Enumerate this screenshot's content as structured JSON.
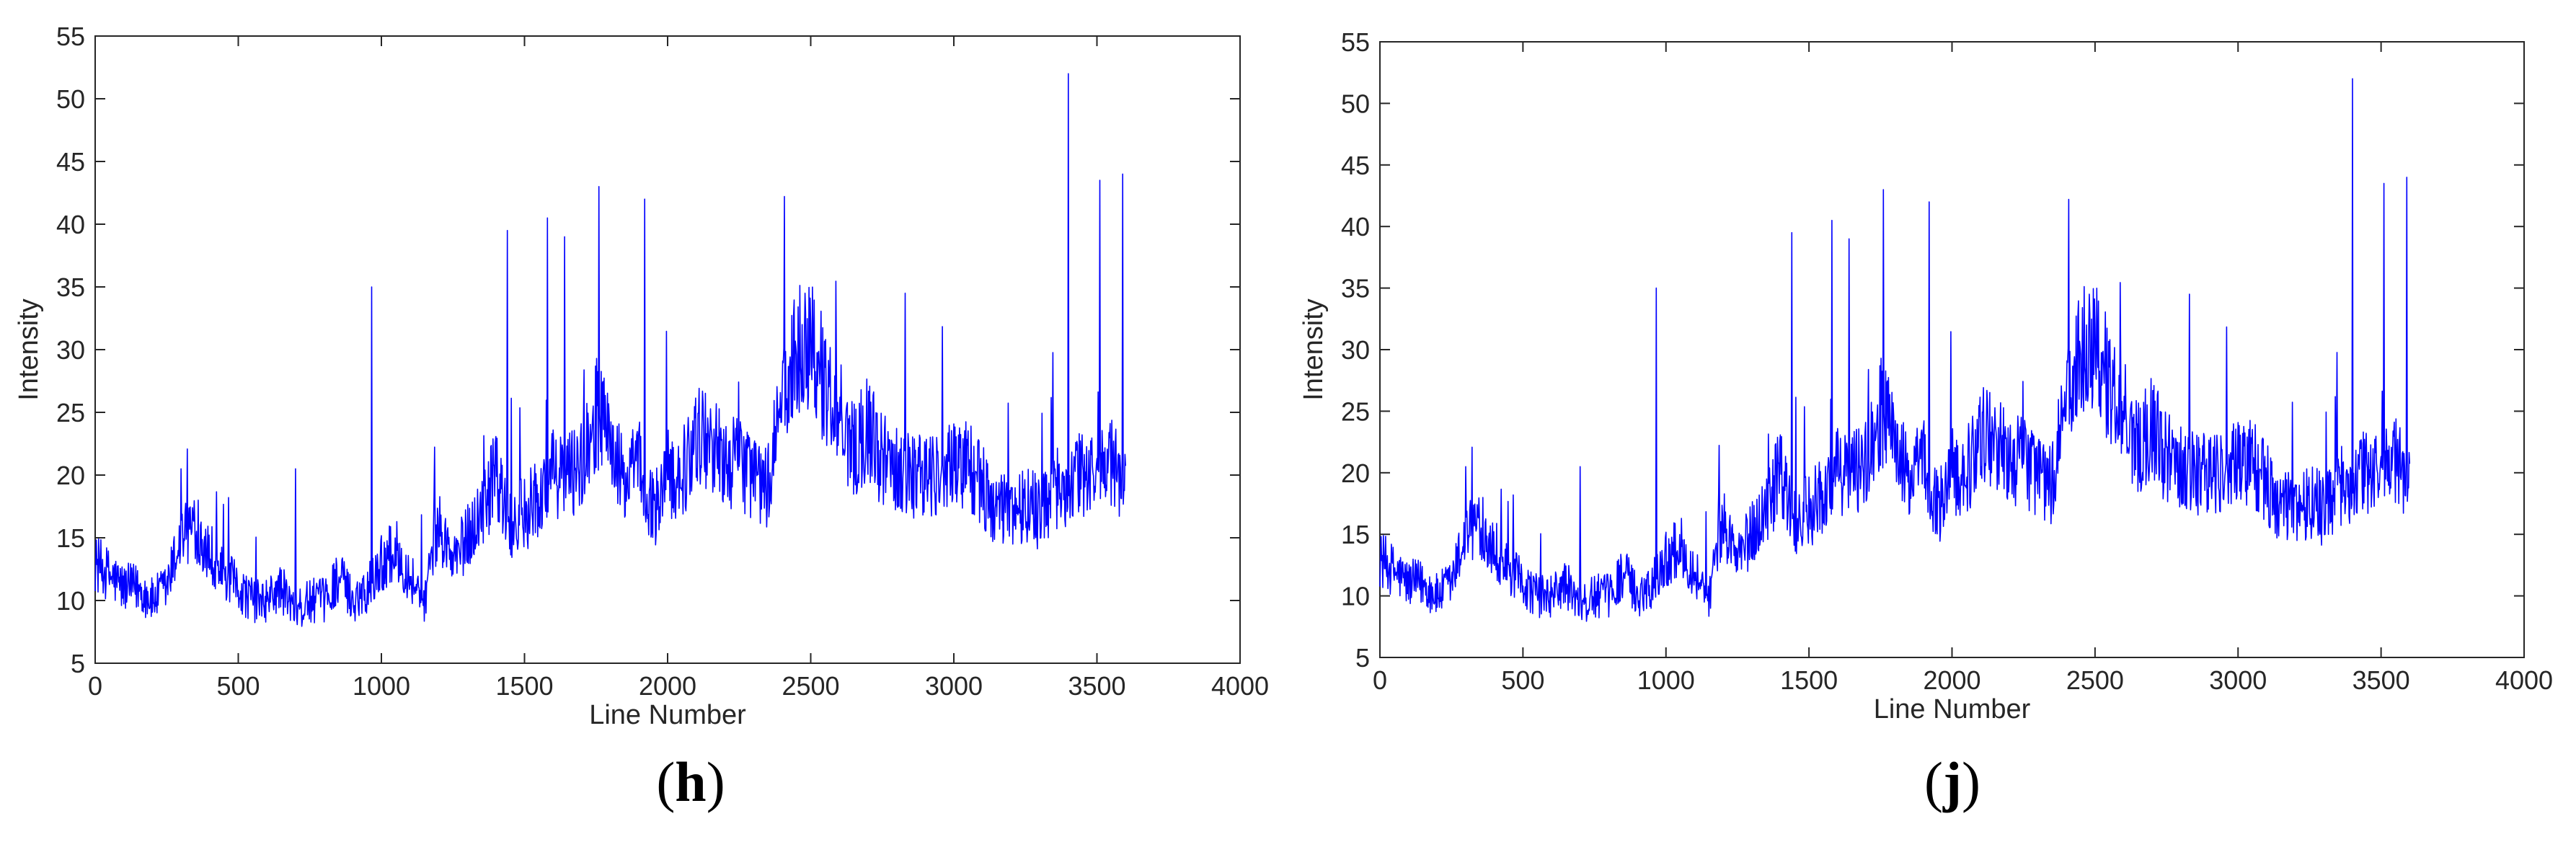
{
  "figure": {
    "accent_color": "#0000ff",
    "panels": [
      {
        "caption_open": "(",
        "caption_letter": "h",
        "caption_close": ")"
      },
      {
        "caption_open": "(",
        "caption_letter": "j",
        "caption_close": ")"
      }
    ]
  },
  "chart_data": [
    {
      "type": "line",
      "title": "",
      "xlabel": "Line Number",
      "ylabel": "Intensity",
      "xlim": [
        0,
        4000
      ],
      "ylim": [
        5,
        55
      ],
      "xticks": [
        0,
        500,
        1000,
        1500,
        2000,
        2500,
        3000,
        3500,
        4000
      ],
      "yticks": [
        5,
        10,
        15,
        20,
        25,
        30,
        35,
        40,
        45,
        50,
        55
      ],
      "grid": false,
      "legend": "none",
      "series": [
        {
          "color": "#0000ff",
          "x_start": 0,
          "x_step": 50,
          "y": [
            13,
            12,
            11,
            11,
            10,
            11,
            15,
            16,
            14,
            12,
            11,
            10,
            10,
            11,
            9,
            10,
            10,
            12,
            10,
            11,
            13,
            14,
            12,
            10,
            16,
            13,
            15,
            17,
            20,
            16,
            17,
            18,
            20,
            20,
            21,
            25,
            23,
            19,
            21,
            17,
            20,
            20,
            23,
            23,
            21,
            21,
            20,
            19,
            26,
            30,
            31,
            27,
            25,
            22,
            24,
            21,
            21,
            20,
            20,
            20,
            21,
            21,
            19,
            17,
            17,
            18,
            17,
            19,
            19,
            20,
            20,
            21,
            19,
            18
          ]
        },
        {
          "type_note": "spikes",
          "x": [
            300,
            360,
            700,
            965,
            1440,
            1580,
            1640,
            1760,
            1920,
            2470,
            2830,
            3400,
            3510,
            3590
          ],
          "y": [
            20.5,
            18,
            20.5,
            35,
            39.5,
            40.5,
            39,
            43,
            42,
            32,
            34.5,
            52,
            43.5,
            44
          ]
        }
      ]
    },
    {
      "type": "line",
      "title": "",
      "xlabel": "Line Number",
      "ylabel": "Intensity",
      "xlim": [
        0,
        4000
      ],
      "ylim": [
        5,
        55
      ],
      "xticks": [
        0,
        500,
        1000,
        1500,
        2000,
        2500,
        3000,
        3500,
        4000
      ],
      "yticks": [
        5,
        10,
        15,
        20,
        25,
        30,
        35,
        40,
        45,
        50,
        55
      ],
      "grid": false,
      "legend": "none",
      "series": [
        {
          "color": "#0000ff",
          "x_start": 0,
          "x_step": 50,
          "y": [
            13,
            12,
            11,
            11,
            10,
            11,
            15,
            16,
            14,
            12,
            11,
            10,
            10,
            11,
            9,
            10,
            10,
            12,
            10,
            11,
            13,
            14,
            12,
            10,
            16,
            13,
            15,
            17,
            20,
            16,
            17,
            18,
            20,
            20,
            21,
            25,
            23,
            19,
            21,
            17,
            20,
            20,
            23,
            23,
            21,
            21,
            20,
            19,
            26,
            30,
            31,
            27,
            25,
            22,
            24,
            21,
            21,
            20,
            20,
            20,
            21,
            21,
            19,
            17,
            17,
            18,
            17,
            19,
            19,
            20,
            20,
            21,
            19,
            18
          ]
        },
        {
          "type_note": "spikes",
          "x": [
            300,
            360,
            700,
            965,
            1440,
            1580,
            1640,
            1760,
            1920,
            2470,
            2830,
            3400,
            3510,
            3590
          ],
          "y": [
            20.5,
            18,
            20.5,
            35,
            39.5,
            40.5,
            39,
            43,
            42,
            32,
            34.5,
            52,
            43.5,
            44
          ]
        }
      ]
    }
  ]
}
